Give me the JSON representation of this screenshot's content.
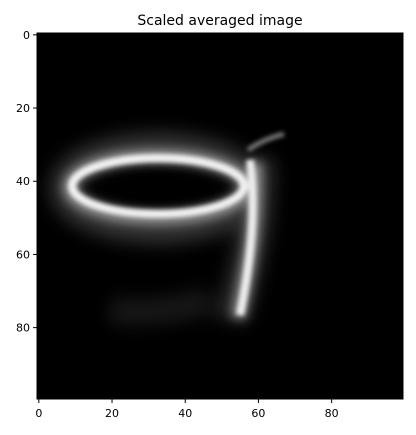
{
  "chart_data": {
    "type": "heatmap",
    "title": "Scaled averaged image",
    "xlabel": "",
    "ylabel": "",
    "xlim": [
      0,
      100
    ],
    "ylim": [
      100,
      0
    ],
    "origin": "upper",
    "colormap": "gray",
    "xticks": [
      0,
      20,
      40,
      60,
      80
    ],
    "yticks": [
      0,
      20,
      40,
      60,
      80
    ],
    "grid": false,
    "content": "averaged handwritten digit 9"
  }
}
